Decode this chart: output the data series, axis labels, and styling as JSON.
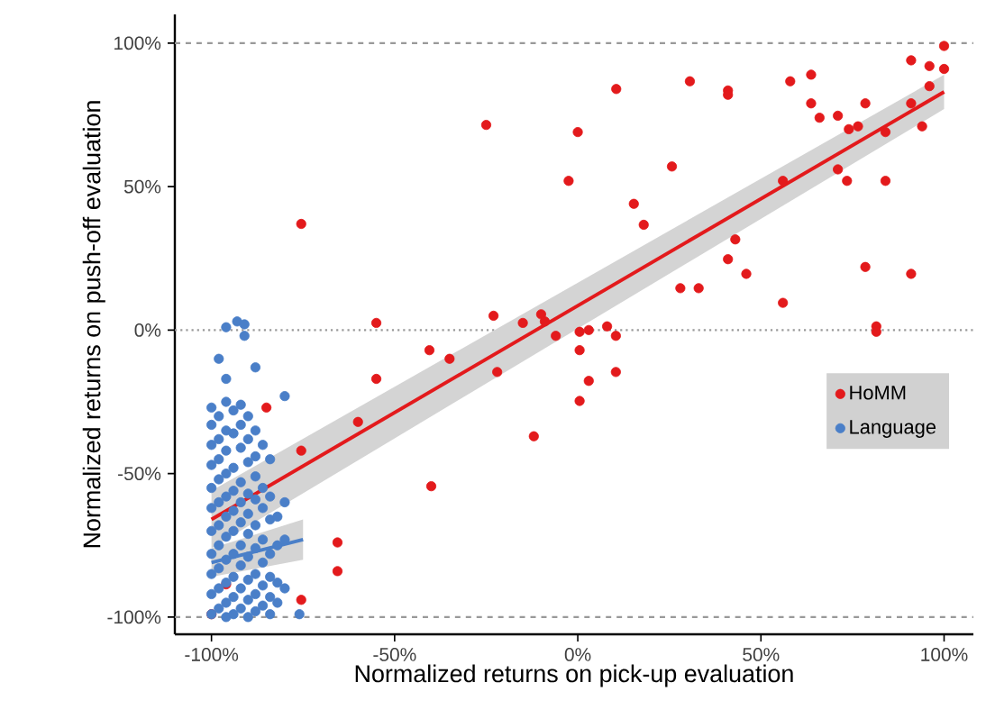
{
  "chart_data": {
    "type": "scatter",
    "xlabel": "Normalized returns on pick-up evaluation",
    "ylabel": "Normalized returns on push-off evaluation",
    "xlim": [
      -110,
      108
    ],
    "ylim": [
      -106,
      110
    ],
    "xticks": [
      {
        "value": -100,
        "label": "-100%"
      },
      {
        "value": -50,
        "label": "-50%"
      },
      {
        "value": 0,
        "label": "0%"
      },
      {
        "value": 50,
        "label": "50%"
      },
      {
        "value": 100,
        "label": "100%"
      }
    ],
    "yticks": [
      {
        "value": -100,
        "label": "-100%"
      },
      {
        "value": -50,
        "label": "-50%"
      },
      {
        "value": 0,
        "label": "0%"
      },
      {
        "value": 50,
        "label": "50%"
      },
      {
        "value": 100,
        "label": "100%"
      }
    ],
    "grid": false,
    "legend": "right",
    "ref_lines": [
      {
        "axis": "y",
        "value": 100,
        "color": "#999999",
        "line_style": "dashed"
      },
      {
        "axis": "y",
        "value": -100,
        "color": "#999999",
        "line_style": "dashed"
      },
      {
        "axis": "y",
        "value": 0,
        "color": "#999999",
        "line_style": "dotted"
      }
    ],
    "series": [
      {
        "name": "HoMM",
        "marker": "circle",
        "color": "#e31a1c",
        "x": [
          -75.5,
          -25,
          -2.5,
          0,
          -55,
          -23,
          -15,
          -10,
          -6,
          10.5,
          30.6,
          41,
          41,
          25.7,
          15.3,
          18,
          43,
          41,
          46,
          28,
          33,
          56,
          58,
          63.7,
          63.7,
          66,
          71,
          78.5,
          74,
          76.5,
          84,
          56,
          71,
          73.5,
          84,
          78.5,
          91,
          81.5,
          81.5,
          91,
          96,
          100,
          100,
          91,
          94,
          96,
          0.5,
          3,
          8,
          10.4,
          0.5,
          -9,
          3,
          0.5,
          10.4,
          -40.5,
          -35,
          -55,
          -22,
          -12,
          -40,
          -75.5,
          -60,
          -85,
          -65.6,
          -65.6,
          -75.5,
          -96,
          -100
        ],
        "values": [
          37,
          71.5,
          52,
          69,
          2.5,
          5,
          2.5,
          5.5,
          -2,
          84,
          86.7,
          83.5,
          82,
          57,
          44,
          36.7,
          31.6,
          24.7,
          19.6,
          14.6,
          14.6,
          9.5,
          86.7,
          89,
          79,
          74,
          74.7,
          79,
          70,
          71,
          69,
          52,
          56,
          52,
          52,
          22,
          19.6,
          1.3,
          -0.6,
          94,
          92,
          99,
          91,
          79,
          71,
          85,
          -0.6,
          0,
          1.3,
          -2,
          -7,
          3,
          -17.7,
          -24.7,
          -14.6,
          -7,
          -10,
          -17,
          -14.6,
          -37,
          -54.4,
          -42,
          -32,
          -27,
          -74,
          -84,
          -94,
          -88.6,
          -99
        ]
      },
      {
        "name": "Language",
        "marker": "circle",
        "color": "#4a7fc8",
        "x": [
          -96,
          -93,
          -91,
          -91,
          -98,
          -96,
          -88,
          -80,
          -100,
          -100,
          -100,
          -100,
          -100,
          -100,
          -100,
          -100,
          -100,
          -100,
          -100,
          -98,
          -98,
          -98,
          -98,
          -98,
          -98,
          -98,
          -98,
          -98,
          -98,
          -96,
          -96,
          -96,
          -96,
          -96,
          -96,
          -96,
          -96,
          -96,
          -96,
          -96,
          -94,
          -94,
          -94,
          -94,
          -94,
          -94,
          -94,
          -94,
          -94,
          -94,
          -92,
          -92,
          -92,
          -92,
          -92,
          -92,
          -92,
          -92,
          -92,
          -92,
          -90,
          -90,
          -90,
          -90,
          -90,
          -90,
          -90,
          -90,
          -90,
          -90,
          -88,
          -88,
          -88,
          -88,
          -88,
          -88,
          -88,
          -88,
          -88,
          -86,
          -86,
          -86,
          -86,
          -86,
          -86,
          -86,
          -84,
          -84,
          -84,
          -84,
          -84,
          -84,
          -84,
          -82,
          -82,
          -82,
          -82,
          -80,
          -80,
          -80,
          -76
        ],
        "values": [
          1,
          3,
          2,
          -2,
          -10,
          -17,
          -13,
          -23,
          -27,
          -33,
          -40,
          -47,
          -55,
          -62,
          -70,
          -78,
          -85,
          -92,
          -99,
          -30,
          -38,
          -45,
          -52,
          -60,
          -68,
          -75,
          -83,
          -90,
          -97,
          -25,
          -35,
          -42,
          -50,
          -58,
          -65,
          -72,
          -80,
          -88,
          -95,
          -100,
          -28,
          -36,
          -48,
          -56,
          -63,
          -70,
          -78,
          -86,
          -93,
          -99,
          -26,
          -33,
          -41,
          -53,
          -60,
          -67,
          -75,
          -82,
          -90,
          -97,
          -30,
          -38,
          -46,
          -57,
          -64,
          -71,
          -79,
          -87,
          -94,
          -100,
          -35,
          -44,
          -51,
          -59,
          -68,
          -76,
          -85,
          -92,
          -98,
          -40,
          -55,
          -62,
          -73,
          -81,
          -89,
          -96,
          -45,
          -58,
          -66,
          -78,
          -86,
          -93,
          -99,
          -65,
          -75,
          -88,
          -95,
          -60,
          -73,
          -90,
          -99
        ]
      },
      {
        "type": "line",
        "marker": "none",
        "color": "#e31a1c",
        "x": [
          -100,
          100
        ],
        "values": [
          -66,
          83
        ],
        "lower": [
          -76,
          77
        ],
        "upper": [
          -56,
          89
        ]
      },
      {
        "type": "line",
        "marker": "none",
        "color": "#4a7fc8",
        "x": [
          -100,
          -75
        ],
        "values": [
          -81,
          -73
        ],
        "lower": [
          -86,
          -80
        ],
        "upper": [
          -76,
          -66
        ]
      }
    ]
  }
}
